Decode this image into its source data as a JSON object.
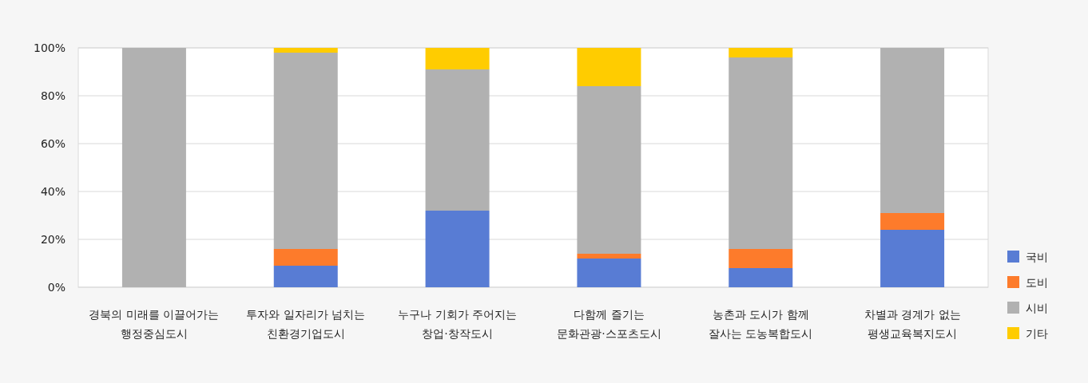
{
  "chart_data": {
    "type": "bar",
    "stacked": true,
    "categories": [
      "경북의 미래를 이끌어가는\n행정중심도시",
      "투자와 일자리가 넘치는\n친환경기업도시",
      "누구나 기회가 주어지는\n창업·창작도시",
      "다함께 즐기는\n문화관광·스포츠도시",
      "농촌과 도시가 함께\n잘사는 도농복합도시",
      "차별과 경계가 없는\n평생교육복지도시"
    ],
    "series": [
      {
        "name": "국비",
        "color": "#587cd4",
        "values": [
          0,
          9,
          32,
          12,
          8,
          24
        ]
      },
      {
        "name": "도비",
        "color": "#fd7b2b",
        "values": [
          0,
          7,
          0,
          2,
          8,
          7
        ]
      },
      {
        "name": "시비",
        "color": "#b1b1b1",
        "values": [
          100,
          82,
          59,
          70,
          80,
          69
        ]
      },
      {
        "name": "기타",
        "color": "#ffcc00",
        "values": [
          0,
          2,
          9,
          16,
          4,
          0
        ]
      }
    ],
    "ylim": [
      0,
      100
    ],
    "yticks": [
      {
        "value": 0,
        "label": "0%"
      },
      {
        "value": 20,
        "label": "20%"
      },
      {
        "value": 40,
        "label": "40%"
      },
      {
        "value": 60,
        "label": "60%"
      },
      {
        "value": 80,
        "label": "80%"
      },
      {
        "value": 100,
        "label": "100%"
      }
    ],
    "grid": "y",
    "legend": "right"
  }
}
